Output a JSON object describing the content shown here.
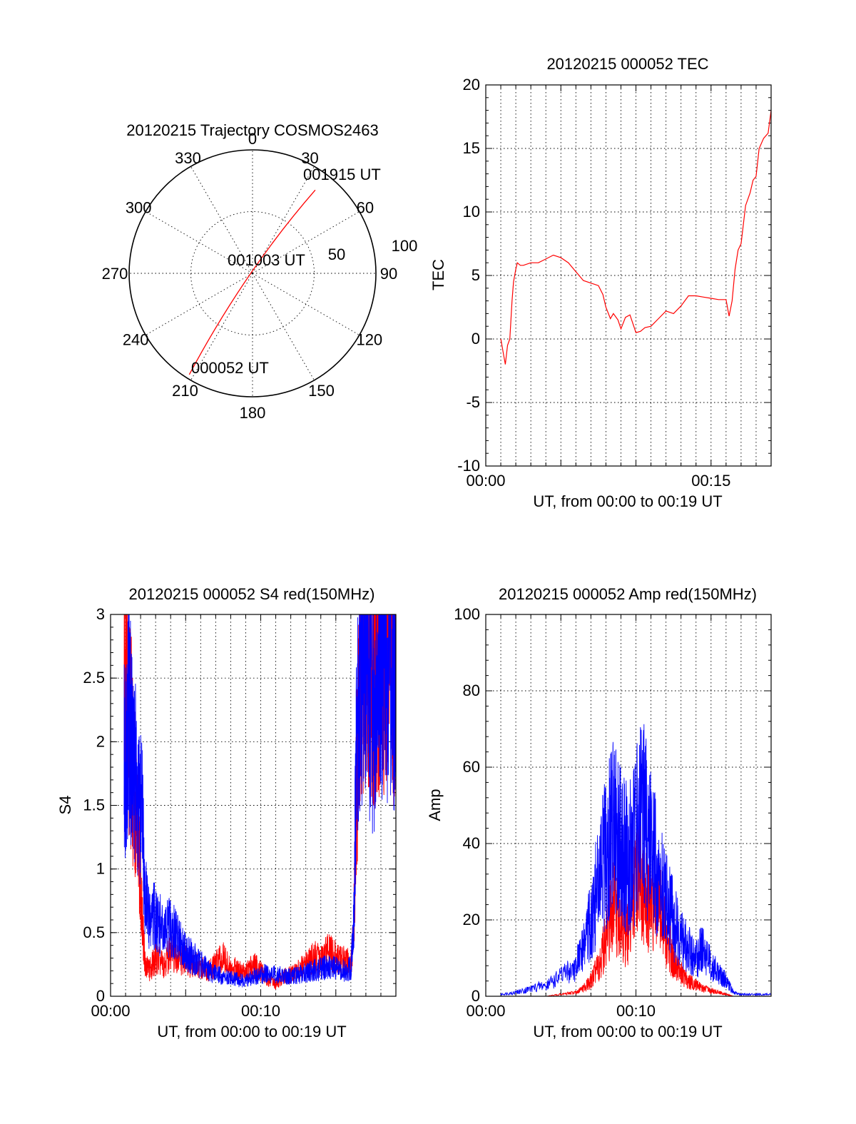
{
  "colors": {
    "red": "#ff0000",
    "blue": "#0000ff",
    "axis": "#000000"
  },
  "chart_data": [
    {
      "type": "polar",
      "title": "20120215 Trajectory COSMOS2463",
      "azimuth_labels": [
        "0",
        "30",
        "60",
        "90",
        "120",
        "150",
        "180",
        "210",
        "240",
        "270",
        "300",
        "330"
      ],
      "azimuth_values": [
        0,
        30,
        60,
        90,
        120,
        150,
        180,
        210,
        240,
        270,
        300,
        330
      ],
      "ring_labels": [
        "50",
        "100"
      ],
      "ring_values": [
        50,
        100
      ],
      "radial_max": 100,
      "annotations": [
        "001915 UT",
        "001003 UT",
        "000052 UT"
      ],
      "track": {
        "color": "red",
        "start": {
          "time": "000052 UT",
          "azimuth": 212,
          "elevation": 3
        },
        "mid": {
          "time": "001003 UT",
          "azimuth": 230,
          "elevation": 86
        },
        "end": {
          "time": "001915 UT",
          "azimuth": 37,
          "elevation": 14
        }
      }
    },
    {
      "type": "line",
      "title": "20120215 000052 TEC",
      "xlabel": "UT, from 00:00 to 00:19 UT",
      "ylabel": "TEC",
      "xlim": [
        0,
        19
      ],
      "ylim": [
        -10,
        20
      ],
      "yticks": [
        "-10",
        "-5",
        "0",
        "5",
        "10",
        "15",
        "20"
      ],
      "ytick_values": [
        -10,
        -5,
        0,
        5,
        10,
        15,
        20
      ],
      "xticks": [
        "00:00",
        "00:15"
      ],
      "xtick_values": [
        0,
        15
      ],
      "series": [
        {
          "color": "red",
          "x": [
            1.0,
            1.15,
            1.3,
            1.45,
            1.6,
            1.75,
            1.85,
            2.0,
            2.1,
            2.3,
            2.5,
            3.0,
            3.5,
            4.0,
            4.5,
            5.0,
            5.5,
            6.0,
            6.5,
            7.0,
            7.5,
            7.8,
            8.0,
            8.3,
            8.5,
            8.8,
            9.0,
            9.3,
            9.6,
            10.0,
            10.3,
            10.6,
            11.0,
            11.5,
            12.0,
            12.5,
            13.0,
            13.5,
            14.0,
            14.5,
            15.0,
            15.5,
            16.0,
            16.2,
            16.4,
            16.6,
            16.8,
            17.0,
            17.3,
            17.6,
            17.8,
            18.0,
            18.2,
            18.5,
            18.8,
            19.0
          ],
          "y": [
            0,
            -1.0,
            -2.0,
            -0.5,
            0,
            3.0,
            4.5,
            5.5,
            6.0,
            5.8,
            5.8,
            6.0,
            6.0,
            6.3,
            6.6,
            6.4,
            6.0,
            5.3,
            4.6,
            4.4,
            4.2,
            3.5,
            2.5,
            1.6,
            2.0,
            1.5,
            0.8,
            1.7,
            1.9,
            0.5,
            0.6,
            0.9,
            1.0,
            1.6,
            2.2,
            2.0,
            2.6,
            3.4,
            3.4,
            3.3,
            3.2,
            3.1,
            3.1,
            1.8,
            3.0,
            5.5,
            7.0,
            7.5,
            10.5,
            11.5,
            12.5,
            12.8,
            15.0,
            15.8,
            16.2,
            18.0
          ]
        }
      ]
    },
    {
      "type": "line",
      "title": "20120215 000052 S4 red(150MHz)",
      "xlabel": "UT, from 00:00 to 00:19 UT",
      "ylabel": "S4",
      "xlim": [
        0,
        19
      ],
      "ylim": [
        0,
        3
      ],
      "yticks": [
        "0",
        "0.5",
        "1",
        "1.5",
        "2",
        "2.5",
        "3"
      ],
      "ytick_values": [
        0,
        0.5,
        1,
        1.5,
        2,
        2.5,
        3
      ],
      "xticks": [
        "00:00",
        "00:10"
      ],
      "xtick_values": [
        0,
        10
      ],
      "series": [
        {
          "color": "red",
          "x": [
            0.9,
            1.2,
            1.5,
            1.8,
            2.1,
            2.3,
            2.6,
            3.0,
            3.5,
            4.0,
            4.5,
            5.0,
            5.5,
            6.0,
            6.5,
            7.0,
            7.5,
            8.0,
            8.5,
            9.0,
            9.5,
            10.0,
            10.5,
            11.0,
            11.5,
            12.0,
            12.5,
            13.0,
            13.5,
            14.0,
            14.5,
            15.0,
            15.5,
            16.0,
            16.2,
            16.4,
            16.8,
            17.2,
            17.6,
            18.0,
            18.4,
            18.8,
            19.0
          ],
          "y": [
            2.6,
            2.2,
            1.8,
            1.3,
            0.6,
            0.25,
            0.2,
            0.3,
            0.25,
            0.35,
            0.3,
            0.28,
            0.25,
            0.22,
            0.2,
            0.25,
            0.3,
            0.2,
            0.22,
            0.18,
            0.25,
            0.2,
            0.12,
            0.1,
            0.15,
            0.17,
            0.2,
            0.25,
            0.3,
            0.3,
            0.35,
            0.3,
            0.28,
            0.25,
            0.6,
            1.8,
            2.7,
            2.9,
            2.6,
            2.8,
            2.9,
            2.7,
            2.8
          ]
        },
        {
          "color": "blue",
          "x": [
            0.9,
            1.2,
            1.5,
            1.8,
            2.1,
            2.3,
            2.6,
            3.0,
            3.5,
            4.0,
            4.5,
            5.0,
            5.5,
            6.0,
            6.5,
            7.0,
            7.5,
            8.0,
            8.5,
            9.0,
            9.5,
            10.0,
            10.5,
            11.0,
            11.5,
            12.0,
            12.5,
            13.0,
            13.5,
            14.0,
            14.5,
            15.0,
            15.5,
            16.0,
            16.2,
            16.4,
            16.8,
            17.2,
            17.6,
            18.0,
            18.4,
            18.8,
            19.0
          ],
          "y": [
            1.8,
            2.3,
            1.9,
            1.6,
            1.4,
            0.8,
            0.55,
            0.65,
            0.5,
            0.55,
            0.45,
            0.35,
            0.3,
            0.25,
            0.2,
            0.18,
            0.15,
            0.14,
            0.13,
            0.12,
            0.15,
            0.17,
            0.18,
            0.17,
            0.16,
            0.15,
            0.17,
            0.19,
            0.2,
            0.22,
            0.23,
            0.22,
            0.2,
            0.22,
            0.6,
            2.2,
            2.8,
            2.5,
            2.2,
            2.6,
            2.7,
            2.5,
            2.4
          ]
        }
      ]
    },
    {
      "type": "line",
      "title": "20120215 000052 Amp red(150MHz)",
      "xlabel": "UT, from 00:00 to 00:19 UT",
      "ylabel": "Amp",
      "xlim": [
        0,
        19
      ],
      "ylim": [
        0,
        100
      ],
      "yticks": [
        "0",
        "20",
        "40",
        "60",
        "80",
        "100"
      ],
      "ytick_values": [
        0,
        20,
        40,
        60,
        80,
        100
      ],
      "xticks": [
        "00:00",
        "00:10"
      ],
      "xtick_values": [
        0,
        10
      ],
      "series": [
        {
          "color": "red",
          "x": [
            1,
            2,
            3,
            4,
            5,
            6,
            6.5,
            7,
            7.5,
            8,
            8.5,
            9,
            9.5,
            10,
            10.5,
            11,
            11.5,
            12,
            12.5,
            13,
            13.5,
            14,
            14.5,
            15,
            15.5,
            16,
            16.5,
            17,
            18,
            19
          ],
          "y": [
            0,
            0,
            0,
            0,
            0.5,
            1,
            2,
            4,
            8,
            15,
            25,
            18,
            16,
            32,
            28,
            22,
            25,
            15,
            10,
            6,
            4,
            3,
            2,
            1.5,
            1,
            0.5,
            0,
            0,
            0,
            0
          ]
        },
        {
          "color": "blue",
          "x": [
            1,
            2,
            3,
            4,
            5,
            6,
            6.5,
            7,
            7.5,
            8,
            8.5,
            9,
            9.5,
            10,
            10.5,
            11,
            11.5,
            12,
            12.5,
            13,
            13.5,
            14,
            14.5,
            15,
            15.5,
            16,
            16.5,
            17,
            18,
            19
          ],
          "y": [
            0.5,
            1,
            2,
            3,
            5,
            8,
            12,
            20,
            30,
            38,
            45,
            40,
            35,
            42,
            48,
            40,
            30,
            25,
            20,
            15,
            12,
            10,
            13,
            8,
            6,
            4,
            1,
            0.5,
            0.5,
            0.5
          ]
        }
      ]
    }
  ]
}
